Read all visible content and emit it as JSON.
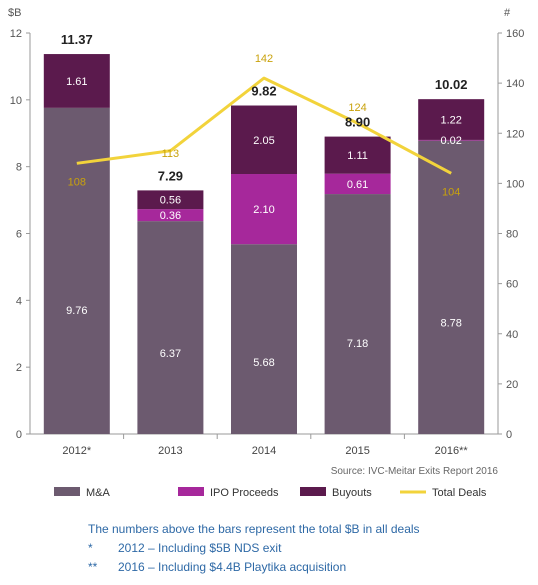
{
  "chart_data": {
    "type": "bar",
    "stacked": true,
    "categories": [
      "2012*",
      "2013",
      "2014",
      "2015",
      "2016**"
    ],
    "series": [
      {
        "name": "M&A",
        "color": "#6c5a6f",
        "values": [
          9.76,
          6.37,
          5.68,
          7.18,
          8.78
        ]
      },
      {
        "name": "IPO Proceeds",
        "color": "#a6289b",
        "values": [
          0,
          0.36,
          2.1,
          0.61,
          0.02
        ]
      },
      {
        "name": "Buyouts",
        "color": "#5b1a4d",
        "values": [
          1.61,
          0.56,
          2.05,
          1.11,
          1.22
        ]
      }
    ],
    "segment_labels": [
      [
        "9.76",
        "",
        "1.61"
      ],
      [
        "6.37",
        "0.36",
        "0.56"
      ],
      [
        "5.68",
        "2.10",
        "2.05"
      ],
      [
        "7.18",
        "0.61",
        "1.11"
      ],
      [
        "8.78",
        "0.02",
        "1.22"
      ]
    ],
    "totals": [
      "11.37",
      "7.29",
      "9.82",
      "8.90",
      "10.02"
    ],
    "line_series": {
      "name": "Total Deals",
      "color": "#f2d33b",
      "values": [
        108,
        113,
        142,
        124,
        104
      ]
    },
    "left_axis": {
      "unit": "$B",
      "ylim": [
        0,
        12
      ],
      "ticks": [
        "0",
        "2",
        "4",
        "6",
        "8",
        "10",
        "12"
      ]
    },
    "right_axis": {
      "unit": "#",
      "ylim": [
        0,
        160
      ],
      "ticks": [
        "0",
        "20",
        "40",
        "60",
        "80",
        "100",
        "120",
        "140",
        "160"
      ]
    },
    "grid": false,
    "legend_position": "bottom",
    "source": "Source: IVC-Meitar Exits Report 2016"
  },
  "notes": {
    "line1": "The numbers above the bars represent the total $B in all deals",
    "line2_mark": "*",
    "line2_text": "2012 – Including $5B NDS exit",
    "line3_mark": "**",
    "line3_text": "2016 – Including $4.4B Playtika acquisition"
  }
}
